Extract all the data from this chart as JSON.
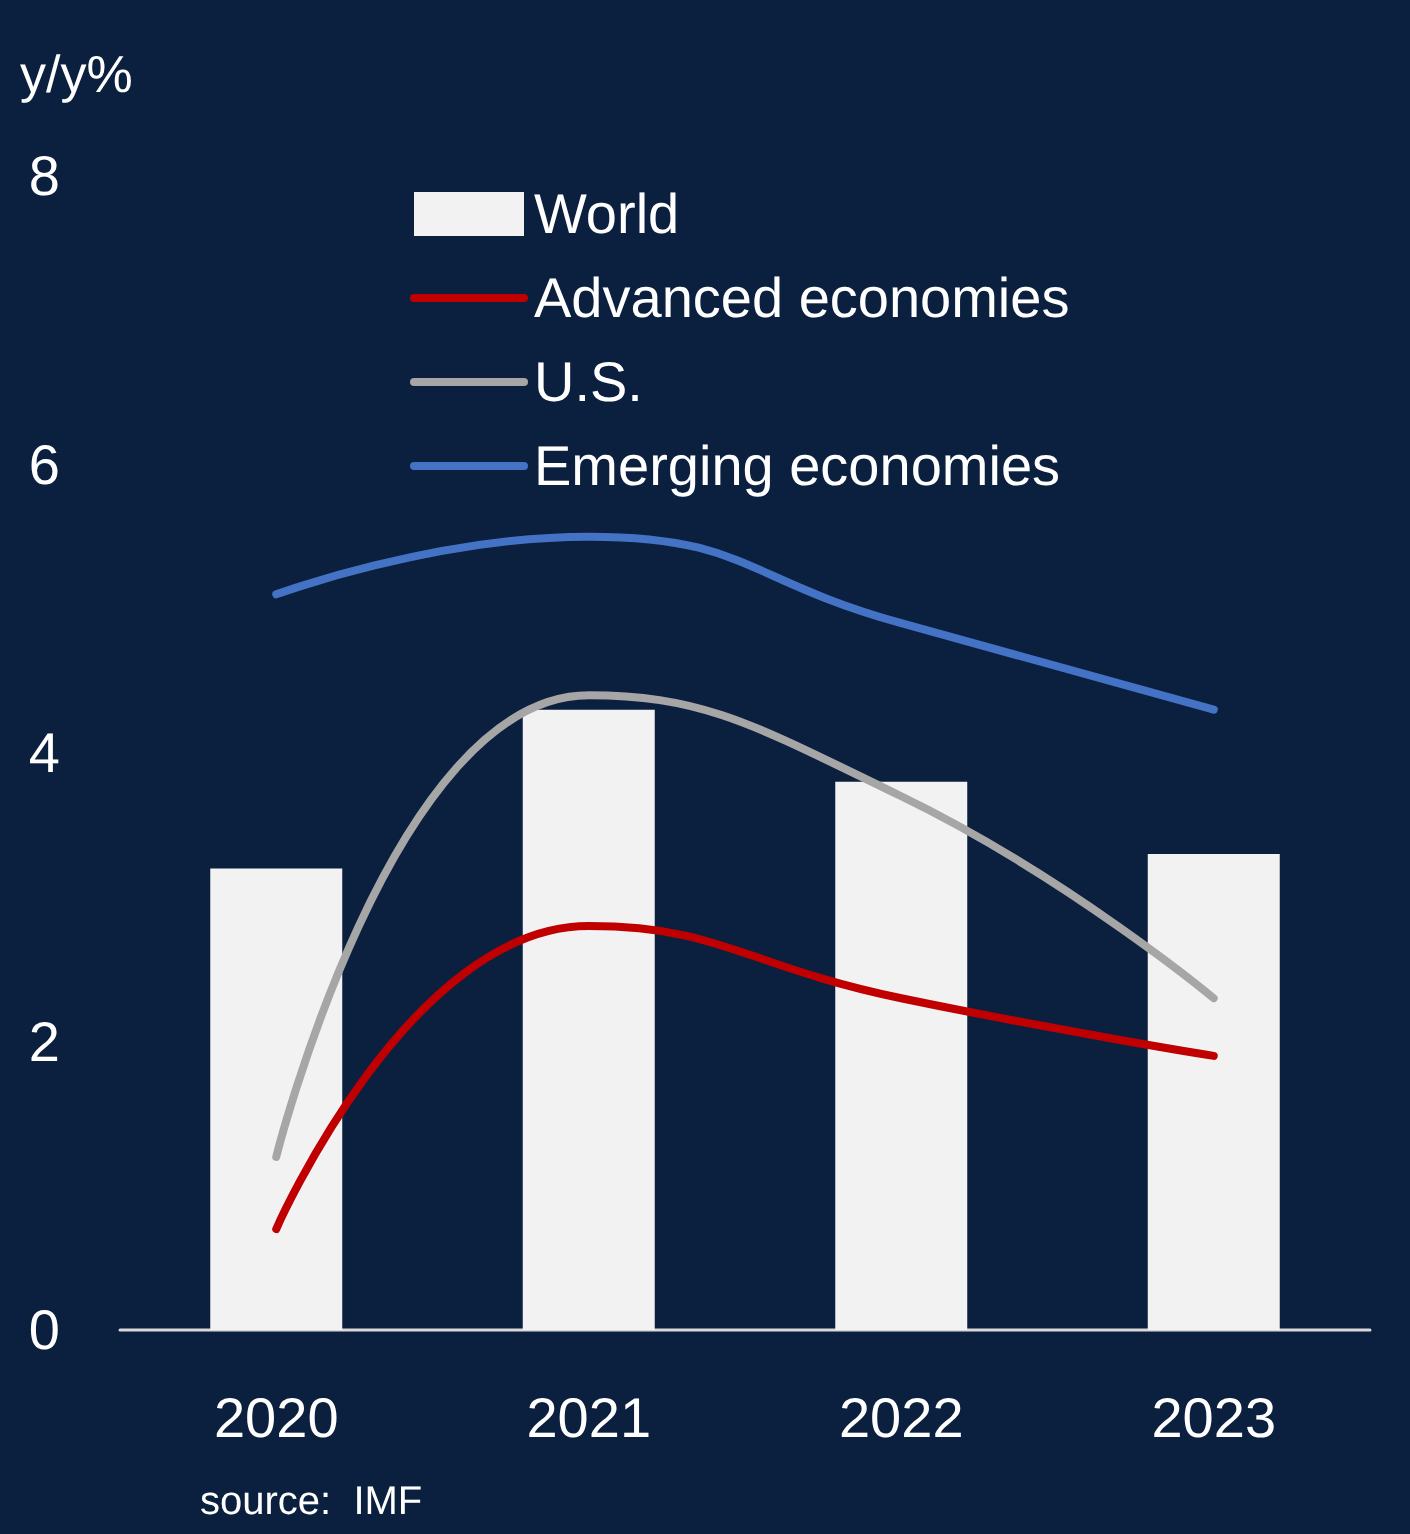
{
  "chart_data": {
    "type": "bar",
    "ylabel": "y/y%",
    "categories": [
      "2020",
      "2021",
      "2022",
      "2023"
    ],
    "series": [
      {
        "name": "World",
        "color": "#f2f2f2",
        "values": [
          3.2,
          4.3,
          3.8,
          3.3
        ]
      },
      {
        "name": "Advanced economies",
        "type": "line",
        "color": "#c00000",
        "values": [
          0.7,
          2.8,
          2.3,
          1.9
        ]
      },
      {
        "name": "U.S.",
        "type": "line",
        "color": "#a6a6a6",
        "values": [
          1.2,
          4.4,
          3.7,
          2.3
        ]
      },
      {
        "name": "Emerging economies",
        "type": "line",
        "color": "#4472c4",
        "values": [
          5.1,
          5.5,
          4.9,
          4.3
        ]
      }
    ],
    "ylim": [
      0,
      8
    ],
    "yticks": [
      0,
      2,
      4,
      6,
      8
    ],
    "grid": false,
    "legend": "top",
    "annotations": [
      "source:  IMF"
    ]
  }
}
